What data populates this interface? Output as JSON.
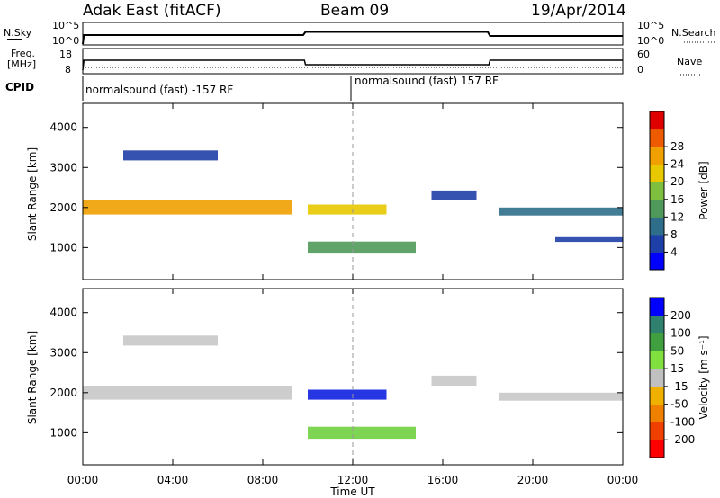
{
  "header": {
    "station": "Adak East (fitACF)",
    "beam": "Beam 09",
    "date": "19/Apr/2014"
  },
  "noise_panel": {
    "left_label": "N.Sky",
    "left_ticks": [
      "10^5",
      "10^0"
    ],
    "right_label": "N.Search",
    "right_ticks": [
      "10^5",
      "10^0"
    ]
  },
  "freq_panel": {
    "left_label_line1": "Freq.",
    "left_label_line2": "[MHz]",
    "left_ticks": [
      "18",
      "8"
    ],
    "right_label": "Nave",
    "right_ticks": [
      "60",
      "0"
    ],
    "cpid_label": "CPID"
  },
  "cpid": {
    "segment1": "normalsound (fast) -157 RF",
    "segment2": "normalsound (fast) 157 RF"
  },
  "axes": {
    "ylabel": "Slant Range [km]",
    "xlabel": "Time UT",
    "yticks": [
      "1000",
      "2000",
      "3000",
      "4000"
    ],
    "xticks": [
      "00:00",
      "04:00",
      "08:00",
      "12:00",
      "16:00",
      "20:00",
      "00:00"
    ]
  },
  "colorbars": {
    "power": {
      "label": "Power [dB]",
      "ticks": [
        "4",
        "8",
        "12",
        "16",
        "20",
        "24",
        "28"
      ],
      "colors": [
        "#0000ff",
        "#1f3fa8",
        "#2e6e8a",
        "#4f9a5a",
        "#7fbf3f",
        "#e8c800",
        "#f0a000",
        "#ee5a00",
        "#e00000"
      ]
    },
    "velocity": {
      "label": "Velocity [m s⁻¹]",
      "ticks": [
        "200",
        "100",
        "50",
        "15",
        "-15",
        "-50",
        "-100",
        "-200"
      ],
      "colors": [
        "#ff0000",
        "#f04000",
        "#f08000",
        "#f0b000",
        "#c0c0c0",
        "#80e040",
        "#40a040",
        "#308070",
        "#0000ff"
      ]
    }
  },
  "chart_data": [
    {
      "type": "line",
      "title": "N.Sky / N.Search",
      "x": [
        0,
        0.05,
        9.8,
        9.9,
        18.0,
        18.1,
        24
      ],
      "series": [
        {
          "values": [
            0.2,
            2.2,
            2.2,
            2.9,
            2.9,
            2.0,
            2.0
          ]
        }
      ],
      "xlim": [
        0,
        24
      ]
    },
    {
      "type": "line",
      "title": "Freq. [MHz] / Nave",
      "x": [
        0,
        0.05,
        9.85,
        9.9,
        18.05,
        18.1,
        24
      ],
      "series": [
        {
          "values": [
            8,
            13.5,
            13.5,
            11,
            11,
            13.5,
            13.5
          ]
        }
      ],
      "xlim": [
        0,
        24
      ]
    },
    {
      "type": "heatmap",
      "title": "Power [dB]",
      "xlabel": "Time UT",
      "ylabel": "Slant Range [km]",
      "xlim": [
        0,
        24
      ],
      "ylim": [
        200,
        4600
      ],
      "bands": [
        {
          "t0": 0.0,
          "t1": 9.3,
          "range_center": 2000,
          "range_width": 350,
          "power": 24
        },
        {
          "t0": 1.8,
          "t1": 6.0,
          "range_center": 3300,
          "range_width": 250,
          "power": 6
        },
        {
          "t0": 10.0,
          "t1": 13.5,
          "range_center": 1950,
          "range_width": 250,
          "power": 18
        },
        {
          "t0": 10.0,
          "t1": 14.8,
          "range_center": 1000,
          "range_width": 300,
          "power": 14
        },
        {
          "t0": 15.5,
          "t1": 17.5,
          "range_center": 2300,
          "range_width": 250,
          "power": 6
        },
        {
          "t0": 18.5,
          "t1": 24.0,
          "range_center": 1900,
          "range_width": 200,
          "power": 8
        },
        {
          "t0": 21.0,
          "t1": 24.0,
          "range_center": 1200,
          "range_width": 120,
          "power": 6
        }
      ]
    },
    {
      "type": "heatmap",
      "title": "Velocity [m s⁻¹]",
      "xlabel": "Time UT",
      "ylabel": "Slant Range [km]",
      "xlim": [
        0,
        24
      ],
      "ylim": [
        200,
        4600
      ],
      "bands": [
        {
          "t0": 0.0,
          "t1": 9.3,
          "range_center": 2000,
          "range_width": 350,
          "velocity": 0
        },
        {
          "t0": 1.8,
          "t1": 6.0,
          "range_center": 3300,
          "range_width": 250,
          "velocity": 0
        },
        {
          "t0": 10.0,
          "t1": 13.5,
          "range_center": 1950,
          "range_width": 250,
          "velocity": 200
        },
        {
          "t0": 10.0,
          "t1": 14.8,
          "range_center": 1000,
          "range_width": 300,
          "velocity": -40
        },
        {
          "t0": 15.5,
          "t1": 17.5,
          "range_center": 2300,
          "range_width": 250,
          "velocity": 0
        },
        {
          "t0": 18.5,
          "t1": 24.0,
          "range_center": 1900,
          "range_width": 200,
          "velocity": 0
        }
      ]
    }
  ]
}
